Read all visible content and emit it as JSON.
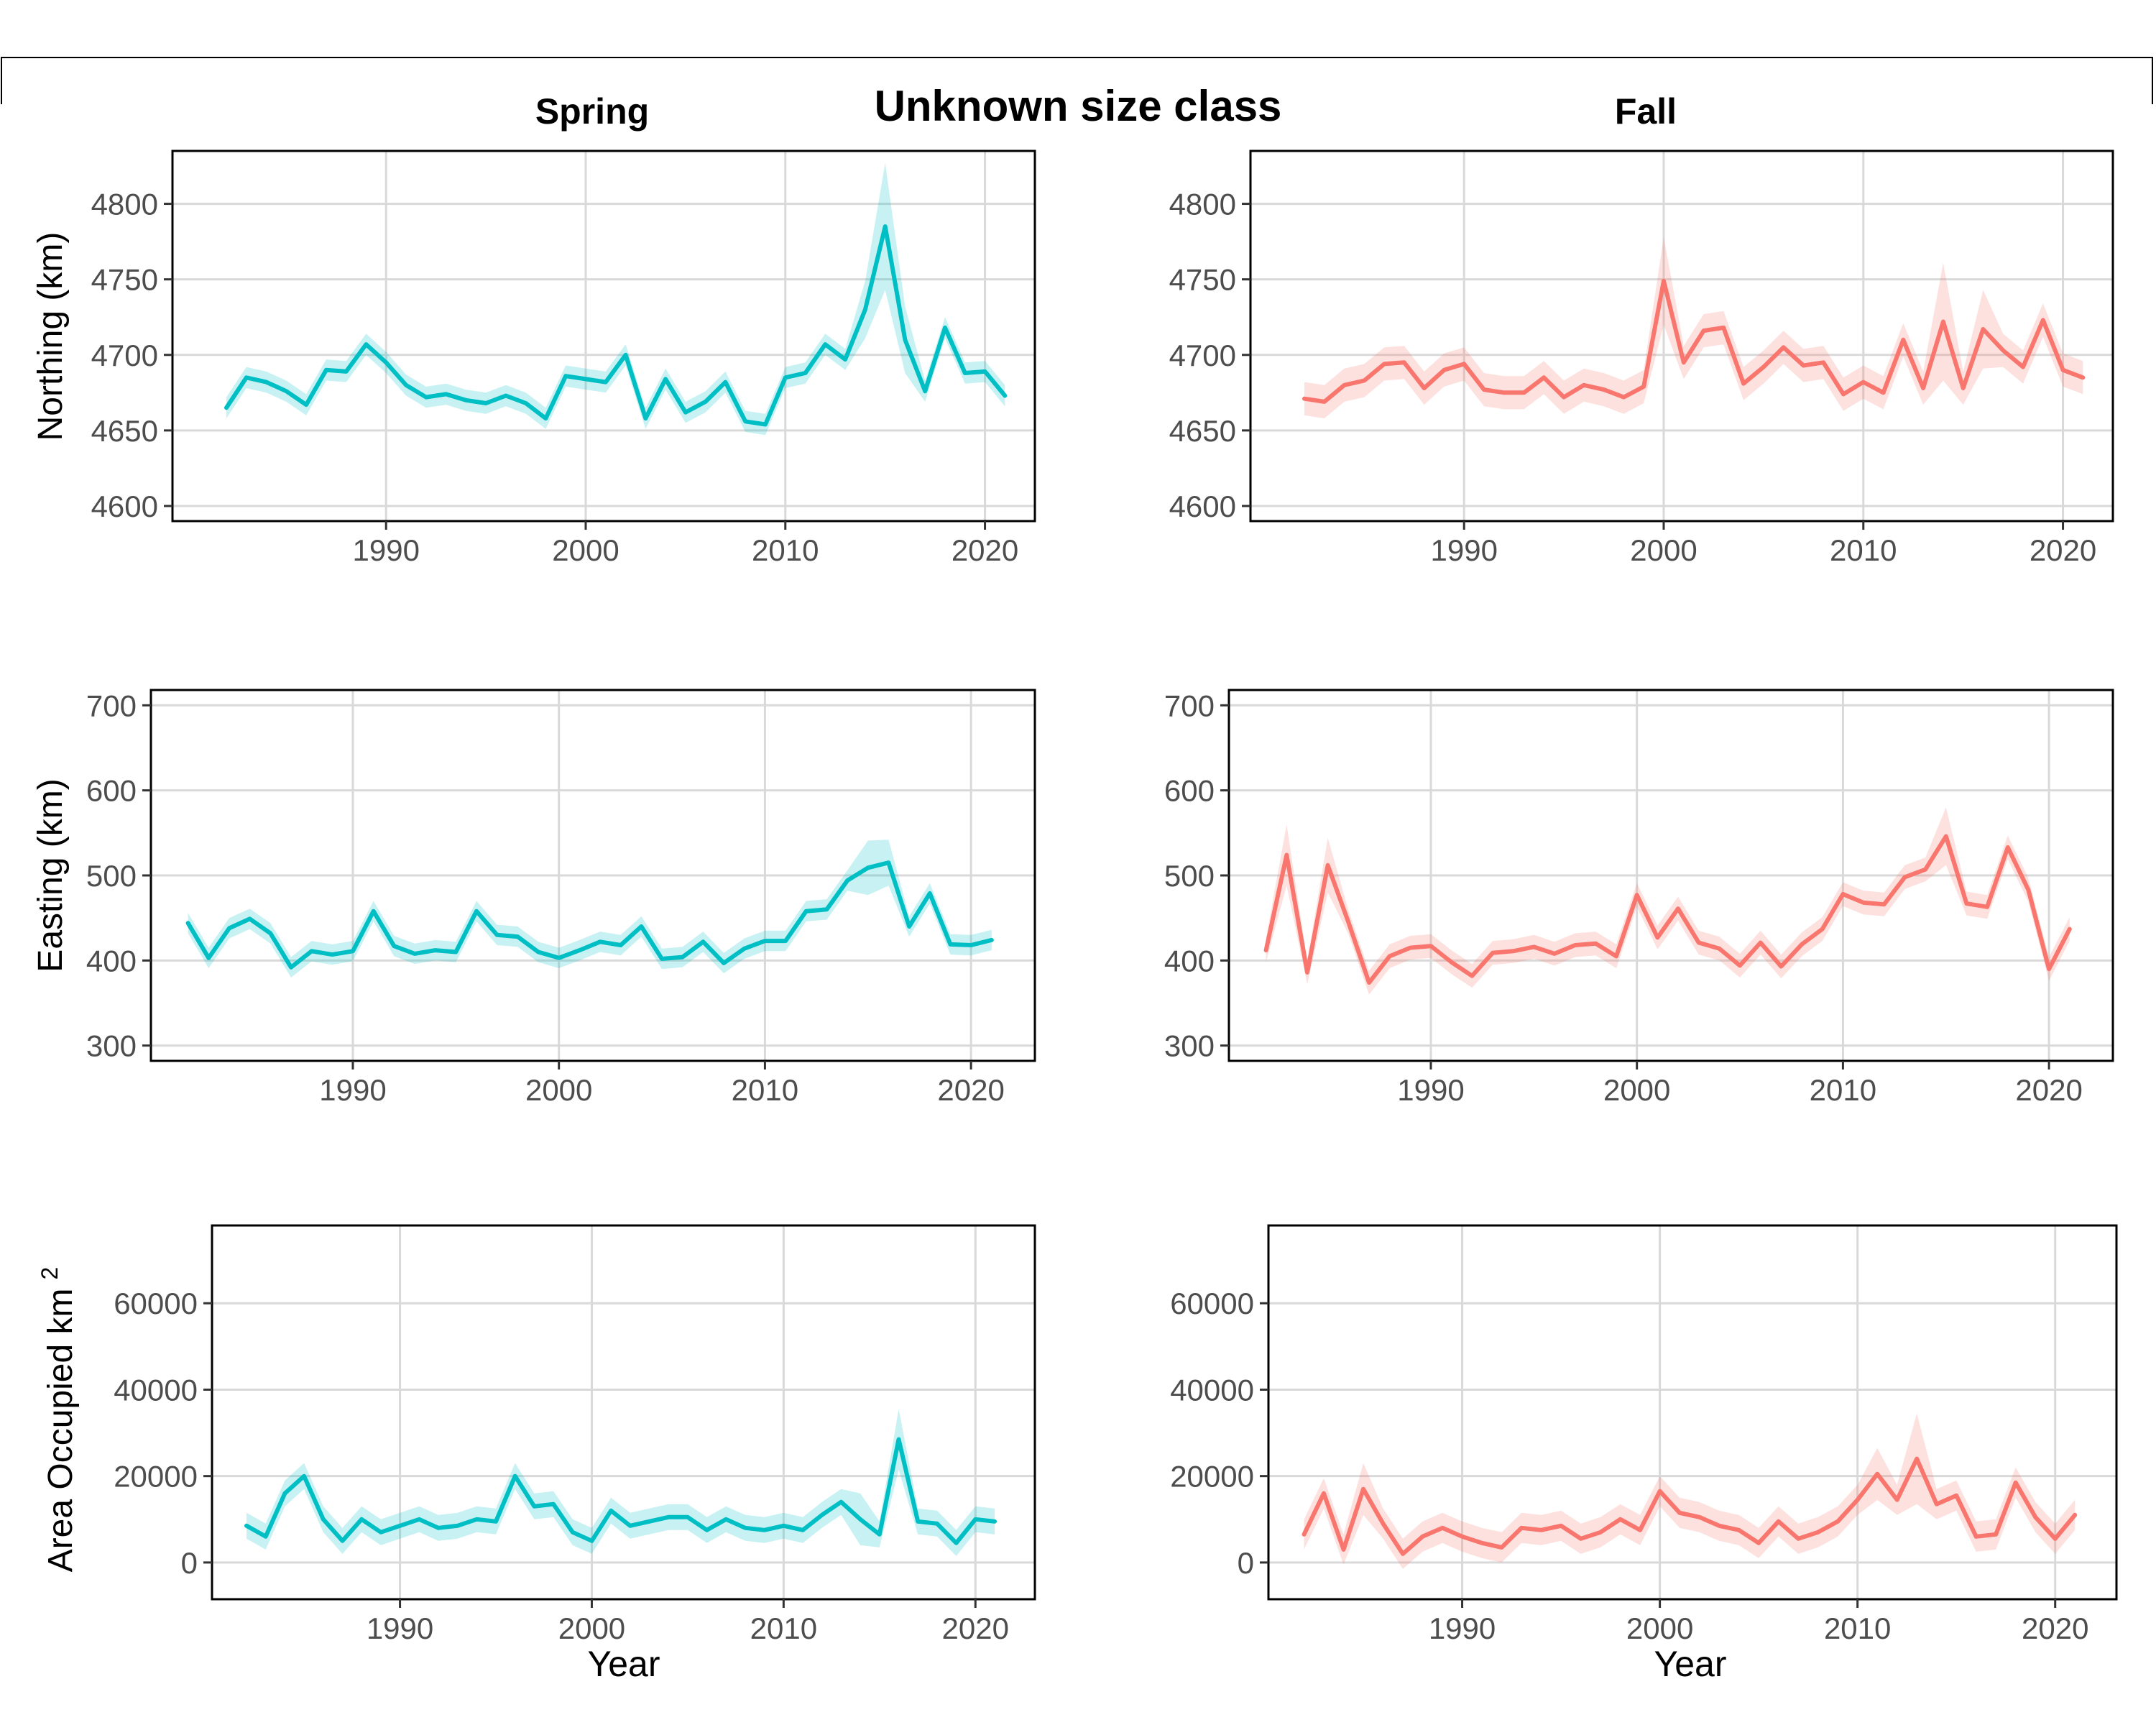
{
  "title": "Unknown size class",
  "columns": [
    "Spring",
    "Fall"
  ],
  "colors": {
    "Spring": "#00BFC4",
    "Fall": "#F8766D"
  },
  "axes": {
    "x_label": "Year",
    "x_ticks": [
      1990,
      2000,
      2010,
      2020
    ],
    "northing": {
      "label": "Northing (km)",
      "ticks": [
        4600,
        4650,
        4700,
        4750,
        4800
      ],
      "ylim": [
        4590,
        4835
      ]
    },
    "easting": {
      "label": "Easting (km)",
      "ticks": [
        300,
        400,
        500,
        600,
        700
      ],
      "ylim": [
        282,
        718
      ]
    },
    "area": {
      "label": "Area Occupied km",
      "label_sup": "2",
      "ticks": [
        0,
        20000,
        40000,
        60000
      ],
      "ylim": [
        -8500,
        78000
      ]
    }
  },
  "chart_data": [
    {
      "type": "line",
      "row": "northing",
      "column": "Spring",
      "x": [
        1982,
        1983,
        1984,
        1985,
        1986,
        1987,
        1988,
        1989,
        1990,
        1991,
        1992,
        1993,
        1994,
        1995,
        1996,
        1997,
        1998,
        1999,
        2000,
        2001,
        2002,
        2003,
        2004,
        2005,
        2006,
        2007,
        2008,
        2009,
        2010,
        2011,
        2012,
        2013,
        2014,
        2015,
        2016,
        2017,
        2018,
        2019,
        2020,
        2021
      ],
      "y": [
        4665,
        4685,
        4682,
        4676,
        4667,
        4690,
        4689,
        4707,
        4695,
        4680,
        4672,
        4674,
        4670,
        4668,
        4673,
        4668,
        4658,
        4686,
        4684,
        4682,
        4700,
        4658,
        4684,
        4662,
        4669,
        4682,
        4656,
        4654,
        4685,
        4688,
        4707,
        4697,
        4730,
        4785,
        4710,
        4676,
        4718,
        4688,
        4689,
        4673
      ],
      "ci": 7,
      "ci_x": [
        2014,
        2015,
        2016
      ],
      "ci_extra": [
        12,
        35,
        15
      ],
      "xlim": [
        1979.3,
        2022.5
      ]
    },
    {
      "type": "line",
      "row": "northing",
      "column": "Fall",
      "x": [
        1982,
        1983,
        1984,
        1985,
        1986,
        1987,
        1988,
        1989,
        1990,
        1991,
        1992,
        1993,
        1994,
        1995,
        1996,
        1997,
        1998,
        1999,
        2000,
        2001,
        2002,
        2003,
        2004,
        2005,
        2006,
        2007,
        2008,
        2009,
        2010,
        2011,
        2012,
        2013,
        2014,
        2015,
        2016,
        2017,
        2018,
        2019,
        2020,
        2021
      ],
      "y": [
        4671,
        4669,
        4680,
        4683,
        4694,
        4695,
        4678,
        4690,
        4694,
        4677,
        4675,
        4675,
        4685,
        4672,
        4680,
        4677,
        4672,
        4679,
        4749,
        4695,
        4716,
        4718,
        4681,
        4692,
        4705,
        4693,
        4695,
        4674,
        4682,
        4675,
        4710,
        4678,
        4722,
        4678,
        4717,
        4703,
        4692,
        4723,
        4690,
        4685
      ],
      "ci": 11,
      "ci_x": [
        2000,
        2014,
        2016
      ],
      "ci_extra": [
        18,
        28,
        15
      ],
      "xlim": [
        1979.3,
        2022.5
      ]
    },
    {
      "type": "line",
      "row": "easting",
      "column": "Spring",
      "x": [
        1982,
        1983,
        1984,
        1985,
        1986,
        1987,
        1988,
        1989,
        1990,
        1991,
        1992,
        1993,
        1994,
        1995,
        1996,
        1997,
        1998,
        1999,
        2000,
        2001,
        2002,
        2003,
        2004,
        2005,
        2006,
        2007,
        2008,
        2009,
        2010,
        2011,
        2012,
        2013,
        2014,
        2015,
        2016,
        2017,
        2018,
        2019,
        2020,
        2021
      ],
      "y": [
        444,
        403,
        438,
        449,
        432,
        392,
        411,
        407,
        411,
        458,
        417,
        408,
        412,
        410,
        458,
        430,
        428,
        410,
        403,
        412,
        422,
        418,
        440,
        402,
        404,
        422,
        397,
        414,
        423,
        423,
        458,
        460,
        494,
        509,
        515,
        440,
        479,
        419,
        418,
        424
      ],
      "ci": 12,
      "ci_x": [
        2015,
        2016
      ],
      "ci_extra": [
        20,
        15
      ],
      "xlim": [
        1980.2,
        2023.1
      ]
    },
    {
      "type": "line",
      "row": "easting",
      "column": "Fall",
      "x": [
        1982,
        1983,
        1984,
        1985,
        1986,
        1987,
        1988,
        1989,
        1990,
        1991,
        1992,
        1993,
        1994,
        1995,
        1996,
        1997,
        1998,
        1999,
        2000,
        2001,
        2002,
        2003,
        2004,
        2005,
        2006,
        2007,
        2008,
        2009,
        2010,
        2011,
        2012,
        2013,
        2014,
        2015,
        2016,
        2017,
        2018,
        2019,
        2020,
        2021
      ],
      "y": [
        412,
        524,
        386,
        512,
        445,
        374,
        405,
        415,
        417,
        398,
        382,
        409,
        411,
        416,
        408,
        418,
        420,
        405,
        477,
        427,
        461,
        421,
        414,
        394,
        421,
        393,
        419,
        437,
        478,
        468,
        466,
        498,
        507,
        546,
        467,
        463,
        533,
        483,
        390,
        437
      ],
      "ci": 14,
      "ci_x": [
        1983,
        1985,
        2015
      ],
      "ci_extra": [
        22,
        18,
        20
      ],
      "xlim": [
        1980.2,
        2023.1
      ]
    },
    {
      "type": "line",
      "row": "area",
      "column": "Spring",
      "x": [
        1982,
        1983,
        1984,
        1985,
        1986,
        1987,
        1988,
        1989,
        1990,
        1991,
        1992,
        1993,
        1994,
        1995,
        1996,
        1997,
        1998,
        1999,
        2000,
        2001,
        2002,
        2003,
        2004,
        2005,
        2006,
        2007,
        2008,
        2009,
        2010,
        2011,
        2012,
        2013,
        2014,
        2015,
        2016,
        2017,
        2018,
        2019,
        2020,
        2021
      ],
      "y": [
        8500,
        6000,
        16000,
        20000,
        10000,
        5000,
        10000,
        7000,
        8500,
        10000,
        8000,
        8500,
        10000,
        9500,
        20000,
        13000,
        13500,
        7000,
        5000,
        12000,
        8500,
        9500,
        10500,
        10500,
        7500,
        10000,
        8000,
        7500,
        8500,
        7500,
        11000,
        14000,
        10000,
        6500,
        28500,
        9500,
        9000,
        4500,
        10000,
        9500
      ],
      "ci": 3000,
      "ci_x": [
        2016,
        2014
      ],
      "ci_extra": [
        4000,
        3000
      ],
      "xlim": [
        1980.2,
        2023.1
      ]
    },
    {
      "type": "line",
      "row": "area",
      "column": "Fall",
      "x": [
        1982,
        1983,
        1984,
        1985,
        1986,
        1987,
        1988,
        1989,
        1990,
        1991,
        1992,
        1993,
        1994,
        1995,
        1996,
        1997,
        1998,
        1999,
        2000,
        2001,
        2002,
        2003,
        2004,
        2005,
        2006,
        2007,
        2008,
        2009,
        2010,
        2011,
        2012,
        2013,
        2014,
        2015,
        2016,
        2017,
        2018,
        2019,
        2020,
        2021
      ],
      "y": [
        6500,
        16000,
        3000,
        17000,
        9000,
        2000,
        6000,
        8000,
        6000,
        4500,
        3500,
        8000,
        7500,
        8500,
        5500,
        7000,
        10000,
        7500,
        16500,
        11500,
        10500,
        8500,
        7500,
        4500,
        9500,
        5500,
        7000,
        9500,
        14500,
        20500,
        14500,
        24000,
        13500,
        15500,
        6000,
        6500,
        18500,
        10500,
        5500,
        11000
      ],
      "ci": 3500,
      "ci_x": [
        2013,
        2011,
        1985
      ],
      "ci_extra": [
        7000,
        2500,
        2500
      ],
      "xlim": [
        1980.2,
        2023.1
      ]
    }
  ]
}
